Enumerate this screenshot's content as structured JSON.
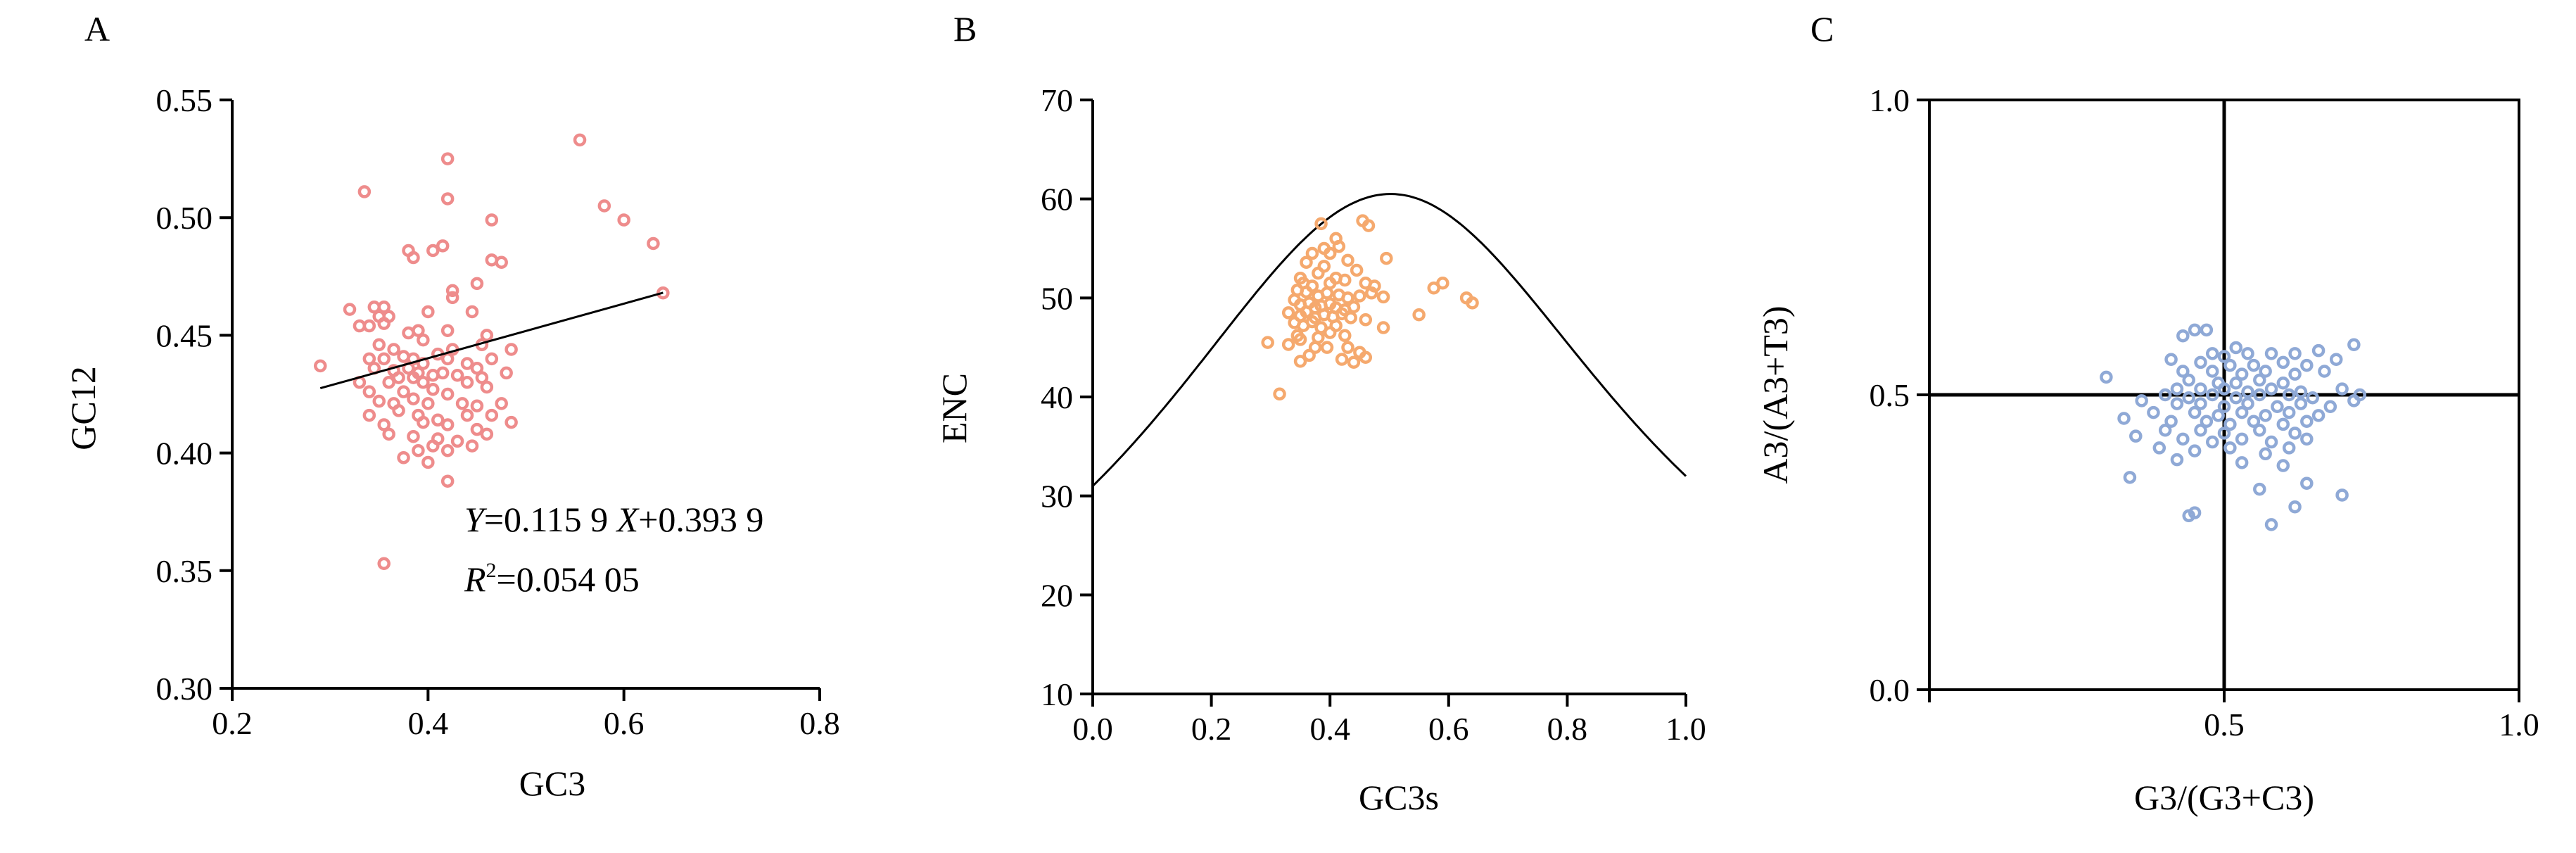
{
  "colors": {
    "panelA": "#ee8c8c",
    "panelB": "#f5a96e",
    "panelC": "#8fa9d6"
  },
  "chart_data": [
    {
      "panel": "A",
      "type": "scatter",
      "xlabel": "GC3",
      "ylabel": "GC12",
      "xlim": [
        0.2,
        0.8
      ],
      "ylim": [
        0.3,
        0.55
      ],
      "xticks": [
        "0.2",
        "0.4",
        "0.6",
        "0.8"
      ],
      "yticks": [
        "0.30",
        "0.35",
        "0.40",
        "0.45",
        "0.50",
        "0.55"
      ],
      "regression": {
        "slope": 0.1159,
        "intercept": 0.3939,
        "x_range": [
          0.29,
          0.64
        ]
      },
      "annotations": {
        "y_sym": "Y",
        "eq_mid": "=0.115 9 ",
        "x_sym": "X",
        "eq_end": "+0.393 9",
        "r_sym": "R",
        "r_sup": "2",
        "r_val": "=0.054 05"
      },
      "points": [
        [
          0.555,
          0.533
        ],
        [
          0.42,
          0.525
        ],
        [
          0.335,
          0.511
        ],
        [
          0.42,
          0.508
        ],
        [
          0.58,
          0.505
        ],
        [
          0.6,
          0.499
        ],
        [
          0.465,
          0.499
        ],
        [
          0.63,
          0.489
        ],
        [
          0.415,
          0.488
        ],
        [
          0.38,
          0.486
        ],
        [
          0.405,
          0.486
        ],
        [
          0.385,
          0.483
        ],
        [
          0.465,
          0.482
        ],
        [
          0.475,
          0.481
        ],
        [
          0.64,
          0.468
        ],
        [
          0.425,
          0.469
        ],
        [
          0.45,
          0.472
        ],
        [
          0.425,
          0.466
        ],
        [
          0.345,
          0.462
        ],
        [
          0.355,
          0.462
        ],
        [
          0.35,
          0.458
        ],
        [
          0.32,
          0.461
        ],
        [
          0.36,
          0.458
        ],
        [
          0.4,
          0.46
        ],
        [
          0.445,
          0.46
        ],
        [
          0.34,
          0.454
        ],
        [
          0.355,
          0.455
        ],
        [
          0.33,
          0.454
        ],
        [
          0.42,
          0.452
        ],
        [
          0.39,
          0.452
        ],
        [
          0.38,
          0.451
        ],
        [
          0.46,
          0.45
        ],
        [
          0.395,
          0.448
        ],
        [
          0.455,
          0.446
        ],
        [
          0.35,
          0.446
        ],
        [
          0.365,
          0.444
        ],
        [
          0.425,
          0.444
        ],
        [
          0.485,
          0.444
        ],
        [
          0.34,
          0.44
        ],
        [
          0.355,
          0.44
        ],
        [
          0.375,
          0.441
        ],
        [
          0.385,
          0.44
        ],
        [
          0.395,
          0.438
        ],
        [
          0.41,
          0.442
        ],
        [
          0.42,
          0.44
        ],
        [
          0.44,
          0.438
        ],
        [
          0.465,
          0.44
        ],
        [
          0.345,
          0.436
        ],
        [
          0.365,
          0.435
        ],
        [
          0.38,
          0.436
        ],
        [
          0.39,
          0.434
        ],
        [
          0.405,
          0.433
        ],
        [
          0.415,
          0.434
        ],
        [
          0.43,
          0.433
        ],
        [
          0.45,
          0.436
        ],
        [
          0.48,
          0.434
        ],
        [
          0.33,
          0.43
        ],
        [
          0.36,
          0.43
        ],
        [
          0.37,
          0.432
        ],
        [
          0.385,
          0.432
        ],
        [
          0.395,
          0.43
        ],
        [
          0.44,
          0.43
        ],
        [
          0.455,
          0.432
        ],
        [
          0.29,
          0.437
        ],
        [
          0.34,
          0.426
        ],
        [
          0.375,
          0.426
        ],
        [
          0.405,
          0.427
        ],
        [
          0.42,
          0.425
        ],
        [
          0.46,
          0.428
        ],
        [
          0.35,
          0.422
        ],
        [
          0.365,
          0.421
        ],
        [
          0.385,
          0.423
        ],
        [
          0.4,
          0.421
        ],
        [
          0.435,
          0.421
        ],
        [
          0.475,
          0.421
        ],
        [
          0.45,
          0.42
        ],
        [
          0.34,
          0.416
        ],
        [
          0.37,
          0.418
        ],
        [
          0.39,
          0.416
        ],
        [
          0.41,
          0.414
        ],
        [
          0.44,
          0.416
        ],
        [
          0.465,
          0.416
        ],
        [
          0.355,
          0.412
        ],
        [
          0.395,
          0.413
        ],
        [
          0.42,
          0.412
        ],
        [
          0.45,
          0.41
        ],
        [
          0.485,
          0.413
        ],
        [
          0.36,
          0.408
        ],
        [
          0.385,
          0.407
        ],
        [
          0.41,
          0.406
        ],
        [
          0.43,
          0.405
        ],
        [
          0.46,
          0.408
        ],
        [
          0.405,
          0.403
        ],
        [
          0.39,
          0.401
        ],
        [
          0.42,
          0.401
        ],
        [
          0.445,
          0.403
        ],
        [
          0.375,
          0.398
        ],
        [
          0.4,
          0.396
        ],
        [
          0.42,
          0.388
        ],
        [
          0.355,
          0.353
        ]
      ]
    },
    {
      "panel": "B",
      "type": "scatter",
      "xlabel": "GC3s",
      "ylabel": "ENC",
      "xlim": [
        0.0,
        1.0
      ],
      "ylim": [
        10,
        70
      ],
      "xticks": [
        "0.0",
        "0.2",
        "0.4",
        "0.6",
        "0.8",
        "1.0"
      ],
      "yticks": [
        "10",
        "20",
        "30",
        "40",
        "50",
        "60",
        "70"
      ],
      "expected_curve": "ENC = 2 + s + 29/(s^2 + (1-s)^2)",
      "points": [
        [
          0.385,
          57.5
        ],
        [
          0.455,
          57.8
        ],
        [
          0.465,
          57.3
        ],
        [
          0.41,
          56.0
        ],
        [
          0.415,
          55.2
        ],
        [
          0.4,
          54.5
        ],
        [
          0.39,
          55.0
        ],
        [
          0.37,
          54.5
        ],
        [
          0.36,
          53.6
        ],
        [
          0.43,
          53.8
        ],
        [
          0.495,
          54.0
        ],
        [
          0.445,
          52.8
        ],
        [
          0.39,
          53.2
        ],
        [
          0.38,
          52.5
        ],
        [
          0.41,
          52.0
        ],
        [
          0.35,
          52.0
        ],
        [
          0.355,
          51.5
        ],
        [
          0.37,
          51.2
        ],
        [
          0.4,
          51.5
        ],
        [
          0.425,
          51.8
        ],
        [
          0.46,
          51.5
        ],
        [
          0.475,
          51.2
        ],
        [
          0.59,
          51.5
        ],
        [
          0.575,
          51.0
        ],
        [
          0.345,
          50.8
        ],
        [
          0.36,
          50.6
        ],
        [
          0.38,
          50.2
        ],
        [
          0.395,
          50.5
        ],
        [
          0.415,
          50.3
        ],
        [
          0.43,
          50.0
        ],
        [
          0.45,
          50.2
        ],
        [
          0.47,
          50.5
        ],
        [
          0.49,
          50.1
        ],
        [
          0.63,
          50.0
        ],
        [
          0.64,
          49.5
        ],
        [
          0.34,
          49.8
        ],
        [
          0.35,
          49.3
        ],
        [
          0.365,
          49.5
        ],
        [
          0.375,
          49.0
        ],
        [
          0.385,
          49.2
        ],
        [
          0.4,
          49.4
        ],
        [
          0.41,
          49.0
        ],
        [
          0.425,
          48.8
        ],
        [
          0.44,
          49.1
        ],
        [
          0.33,
          48.5
        ],
        [
          0.35,
          48.2
        ],
        [
          0.36,
          48.6
        ],
        [
          0.375,
          48.0
        ],
        [
          0.39,
          48.3
        ],
        [
          0.405,
          48.1
        ],
        [
          0.42,
          48.4
        ],
        [
          0.435,
          48.0
        ],
        [
          0.55,
          48.3
        ],
        [
          0.34,
          47.5
        ],
        [
          0.355,
          47.2
        ],
        [
          0.37,
          47.6
        ],
        [
          0.385,
          47.0
        ],
        [
          0.41,
          47.2
        ],
        [
          0.46,
          47.8
        ],
        [
          0.345,
          46.2
        ],
        [
          0.38,
          46.0
        ],
        [
          0.4,
          46.5
        ],
        [
          0.425,
          46.2
        ],
        [
          0.49,
          47.0
        ],
        [
          0.295,
          45.5
        ],
        [
          0.33,
          45.3
        ],
        [
          0.35,
          45.8
        ],
        [
          0.375,
          45.0
        ],
        [
          0.395,
          45.0
        ],
        [
          0.43,
          45.0
        ],
        [
          0.365,
          44.2
        ],
        [
          0.45,
          44.5
        ],
        [
          0.42,
          43.8
        ],
        [
          0.44,
          43.5
        ],
        [
          0.46,
          44.0
        ],
        [
          0.35,
          43.6
        ],
        [
          0.315,
          40.3
        ]
      ]
    },
    {
      "panel": "C",
      "type": "scatter",
      "xlabel": "G3/(G3+C3)",
      "ylabel": "A3/(A3+T3)",
      "xlim": [
        0.0,
        1.0
      ],
      "ylim": [
        0.0,
        1.0
      ],
      "xticks": [
        "0.5",
        "1.0"
      ],
      "yticks": [
        "0.0",
        "0.5",
        "1.0"
      ],
      "crosshair": {
        "x": 0.5,
        "y": 0.5
      },
      "points": [
        [
          0.45,
          0.61
        ],
        [
          0.47,
          0.61
        ],
        [
          0.43,
          0.6
        ],
        [
          0.72,
          0.585
        ],
        [
          0.52,
          0.58
        ],
        [
          0.48,
          0.57
        ],
        [
          0.5,
          0.565
        ],
        [
          0.54,
          0.57
        ],
        [
          0.58,
          0.57
        ],
        [
          0.62,
          0.57
        ],
        [
          0.66,
          0.575
        ],
        [
          0.69,
          0.56
        ],
        [
          0.41,
          0.56
        ],
        [
          0.46,
          0.555
        ],
        [
          0.51,
          0.55
        ],
        [
          0.55,
          0.55
        ],
        [
          0.6,
          0.555
        ],
        [
          0.64,
          0.55
        ],
        [
          0.3,
          0.53
        ],
        [
          0.43,
          0.54
        ],
        [
          0.48,
          0.54
        ],
        [
          0.53,
          0.535
        ],
        [
          0.57,
          0.54
        ],
        [
          0.62,
          0.535
        ],
        [
          0.67,
          0.54
        ],
        [
          0.44,
          0.525
        ],
        [
          0.49,
          0.52
        ],
        [
          0.52,
          0.52
        ],
        [
          0.56,
          0.525
        ],
        [
          0.6,
          0.52
        ],
        [
          0.42,
          0.51
        ],
        [
          0.46,
          0.51
        ],
        [
          0.5,
          0.51
        ],
        [
          0.54,
          0.505
        ],
        [
          0.58,
          0.51
        ],
        [
          0.63,
          0.505
        ],
        [
          0.7,
          0.51
        ],
        [
          0.73,
          0.5
        ],
        [
          0.4,
          0.5
        ],
        [
          0.44,
          0.495
        ],
        [
          0.48,
          0.5
        ],
        [
          0.52,
          0.495
        ],
        [
          0.56,
          0.5
        ],
        [
          0.61,
          0.5
        ],
        [
          0.65,
          0.495
        ],
        [
          0.36,
          0.49
        ],
        [
          0.42,
          0.485
        ],
        [
          0.46,
          0.485
        ],
        [
          0.5,
          0.48
        ],
        [
          0.54,
          0.485
        ],
        [
          0.59,
          0.48
        ],
        [
          0.63,
          0.485
        ],
        [
          0.68,
          0.48
        ],
        [
          0.72,
          0.49
        ],
        [
          0.38,
          0.47
        ],
        [
          0.45,
          0.47
        ],
        [
          0.49,
          0.465
        ],
        [
          0.53,
          0.47
        ],
        [
          0.57,
          0.465
        ],
        [
          0.61,
          0.47
        ],
        [
          0.66,
          0.465
        ],
        [
          0.33,
          0.46
        ],
        [
          0.41,
          0.455
        ],
        [
          0.47,
          0.455
        ],
        [
          0.51,
          0.45
        ],
        [
          0.55,
          0.455
        ],
        [
          0.6,
          0.45
        ],
        [
          0.64,
          0.455
        ],
        [
          0.4,
          0.44
        ],
        [
          0.46,
          0.44
        ],
        [
          0.5,
          0.435
        ],
        [
          0.56,
          0.44
        ],
        [
          0.62,
          0.435
        ],
        [
          0.35,
          0.43
        ],
        [
          0.43,
          0.425
        ],
        [
          0.48,
          0.42
        ],
        [
          0.53,
          0.425
        ],
        [
          0.58,
          0.42
        ],
        [
          0.64,
          0.425
        ],
        [
          0.39,
          0.41
        ],
        [
          0.45,
          0.405
        ],
        [
          0.51,
          0.41
        ],
        [
          0.57,
          0.4
        ],
        [
          0.61,
          0.41
        ],
        [
          0.42,
          0.39
        ],
        [
          0.53,
          0.385
        ],
        [
          0.6,
          0.38
        ],
        [
          0.34,
          0.36
        ],
        [
          0.64,
          0.35
        ],
        [
          0.56,
          0.34
        ],
        [
          0.7,
          0.33
        ],
        [
          0.62,
          0.31
        ],
        [
          0.45,
          0.3
        ],
        [
          0.44,
          0.295
        ],
        [
          0.58,
          0.28
        ]
      ]
    }
  ],
  "labels": {
    "panelA": "A",
    "panelB": "B",
    "panelC": "C"
  }
}
